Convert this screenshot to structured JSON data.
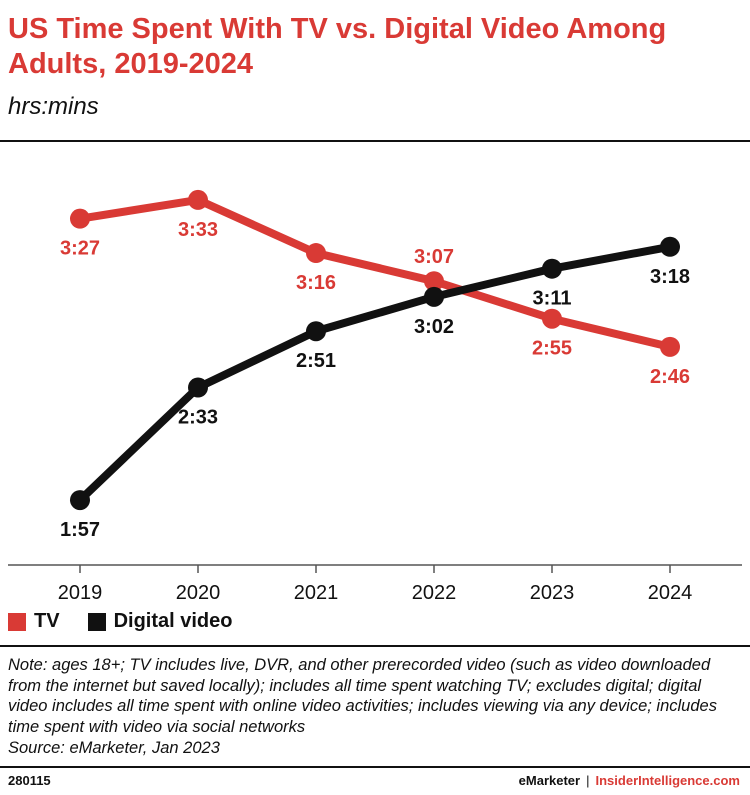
{
  "header": {
    "title": "US Time Spent With TV vs. Digital Video Among Adults, 2019-2024",
    "subtitle": "hrs:mins"
  },
  "colors": {
    "tv": "#d93a35",
    "digital": "#111111",
    "axis": "#555555"
  },
  "chart_data": {
    "type": "line",
    "title": "US Time Spent With TV vs. Digital Video Among Adults, 2019-2024",
    "subtitle": "hrs:mins",
    "x": [
      "2019",
      "2020",
      "2021",
      "2022",
      "2023",
      "2024"
    ],
    "series": [
      {
        "name": "TV",
        "color": "#d93a35",
        "values": [
          207,
          213,
          196,
          187,
          175,
          166
        ],
        "labels": [
          "3:27",
          "3:33",
          "3:16",
          "3:07",
          "2:55",
          "2:46"
        ],
        "label_side": [
          "below",
          "below",
          "below",
          "above",
          "below",
          "below"
        ]
      },
      {
        "name": "Digital video",
        "color": "#111111",
        "values": [
          117,
          153,
          171,
          182,
          191,
          198
        ],
        "labels": [
          "1:57",
          "2:33",
          "2:51",
          "3:02",
          "3:11",
          "3:18"
        ],
        "label_side": [
          "below",
          "below",
          "below",
          "below",
          "below",
          "below"
        ]
      }
    ],
    "ylim": [
      110,
      220
    ],
    "y_unit": "minutes",
    "grid": false,
    "legend_position": "bottom-left"
  },
  "legend": [
    {
      "label": "TV",
      "color": "#d93a35"
    },
    {
      "label": "Digital video",
      "color": "#111111"
    }
  ],
  "note": "Note: ages 18+; TV includes live, DVR, and other prerecorded video (such as video downloaded from the internet but saved locally); includes all time spent watching TV; excludes digital; digital video includes all time spent with online video activities; includes viewing via any device; includes time spent with video via social networks",
  "source": "Source: eMarketer, Jan 2023",
  "footer": {
    "id": "280115",
    "brand1": "eMarketer",
    "separator": "|",
    "brand2": "InsiderIntelligence.com"
  }
}
